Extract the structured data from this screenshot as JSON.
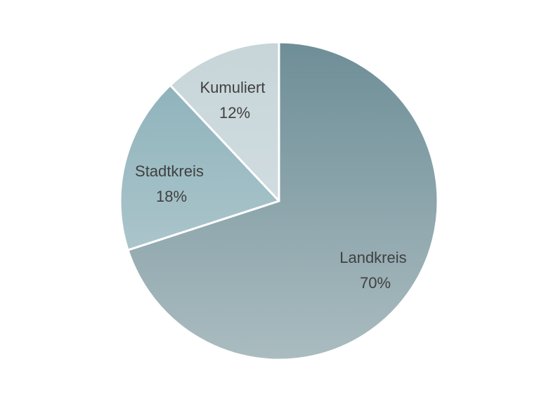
{
  "chart_data": {
    "type": "pie",
    "start_angle": "12 o'clock",
    "direction": "clockwise",
    "slices": [
      {
        "label": "Landkreis",
        "value": 70,
        "value_label": "70%",
        "color_top": "#6e8e97",
        "color_bottom": "#aabcc0"
      },
      {
        "label": "Stadtkreis",
        "value": 18,
        "value_label": "18%",
        "color_top": "#89afb8",
        "color_bottom": "#bcd0d5"
      },
      {
        "label": "Kumuliert",
        "value": 12,
        "value_label": "12%",
        "color_top": "#c7d5d9",
        "color_bottom": "#d9e3e6"
      }
    ]
  }
}
